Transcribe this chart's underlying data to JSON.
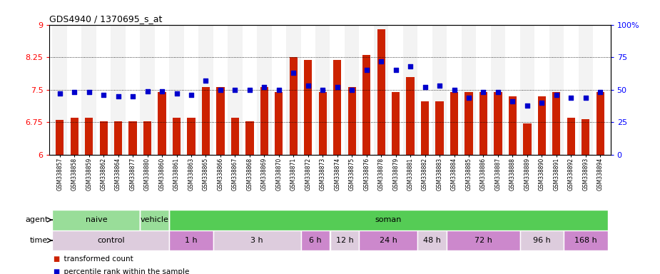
{
  "title": "GDS4940 / 1370695_s_at",
  "samples": [
    "GSM338857",
    "GSM338858",
    "GSM338859",
    "GSM338862",
    "GSM338864",
    "GSM338877",
    "GSM338880",
    "GSM338860",
    "GSM338861",
    "GSM338863",
    "GSM338865",
    "GSM338866",
    "GSM338867",
    "GSM338868",
    "GSM338869",
    "GSM338870",
    "GSM338871",
    "GSM338872",
    "GSM338873",
    "GSM338874",
    "GSM338875",
    "GSM338876",
    "GSM338878",
    "GSM338879",
    "GSM338881",
    "GSM338882",
    "GSM338883",
    "GSM338884",
    "GSM338885",
    "GSM338886",
    "GSM338887",
    "GSM338888",
    "GSM338889",
    "GSM338890",
    "GSM338891",
    "GSM338892",
    "GSM338893",
    "GSM338894"
  ],
  "bar_values": [
    6.8,
    6.85,
    6.85,
    6.78,
    6.78,
    6.78,
    6.78,
    7.45,
    6.85,
    6.85,
    7.57,
    7.57,
    6.85,
    6.78,
    7.56,
    7.44,
    8.26,
    8.18,
    7.44,
    8.18,
    7.56,
    8.3,
    8.9,
    7.44,
    7.8,
    7.24,
    7.24,
    7.44,
    7.44,
    7.44,
    7.44,
    7.35,
    6.72,
    7.35,
    7.44,
    6.85,
    6.82,
    7.44
  ],
  "percentile_values": [
    47,
    48,
    48,
    46,
    45,
    45,
    49,
    49,
    47,
    46,
    57,
    50,
    50,
    50,
    52,
    50,
    63,
    53,
    50,
    52,
    50,
    65,
    72,
    65,
    68,
    52,
    53,
    50,
    44,
    48,
    48,
    41,
    38,
    40,
    46,
    44,
    44,
    48
  ],
  "bar_color": "#cc2200",
  "dot_color": "#0000cc",
  "ylim_left": [
    6.0,
    9.0
  ],
  "ylim_right": [
    0,
    100
  ],
  "yticks_left": [
    6.0,
    6.75,
    7.5,
    8.25,
    9.0
  ],
  "ytick_labels_left": [
    "6",
    "6.75",
    "7.5",
    "8.25",
    "9"
  ],
  "yticks_right": [
    0,
    25,
    50,
    75,
    100
  ],
  "ytick_labels_right": [
    "0",
    "25",
    "50",
    "75",
    "100%"
  ],
  "hlines": [
    6.75,
    7.5,
    8.25
  ],
  "agent_bands": [
    {
      "label": "naive",
      "start": 0,
      "end": 6,
      "color": "#99dd99"
    },
    {
      "label": "vehicle",
      "start": 6,
      "end": 8,
      "color": "#99dd99"
    },
    {
      "label": "soman",
      "start": 8,
      "end": 38,
      "color": "#55cc55"
    }
  ],
  "agent_dividers": [
    6,
    8
  ],
  "time_bands": [
    {
      "label": "control",
      "start": 0,
      "end": 8,
      "color": "#ddccdd"
    },
    {
      "label": "1 h",
      "start": 8,
      "end": 11,
      "color": "#cc88cc"
    },
    {
      "label": "3 h",
      "start": 11,
      "end": 17,
      "color": "#ddccdd"
    },
    {
      "label": "6 h",
      "start": 17,
      "end": 19,
      "color": "#cc88cc"
    },
    {
      "label": "12 h",
      "start": 19,
      "end": 21,
      "color": "#ddccdd"
    },
    {
      "label": "24 h",
      "start": 21,
      "end": 25,
      "color": "#cc88cc"
    },
    {
      "label": "48 h",
      "start": 25,
      "end": 27,
      "color": "#ddccdd"
    },
    {
      "label": "72 h",
      "start": 27,
      "end": 32,
      "color": "#cc88cc"
    },
    {
      "label": "96 h",
      "start": 32,
      "end": 35,
      "color": "#ddccdd"
    },
    {
      "label": "168 h",
      "start": 35,
      "end": 38,
      "color": "#cc88cc"
    }
  ],
  "legend_items": [
    {
      "label": "transformed count",
      "color": "#cc2200"
    },
    {
      "label": "percentile rank within the sample",
      "color": "#0000cc"
    }
  ],
  "background_color": "#ffffff",
  "bar_width": 0.55,
  "tick_bg_even": "#dddddd",
  "tick_bg_odd": "#ffffff"
}
